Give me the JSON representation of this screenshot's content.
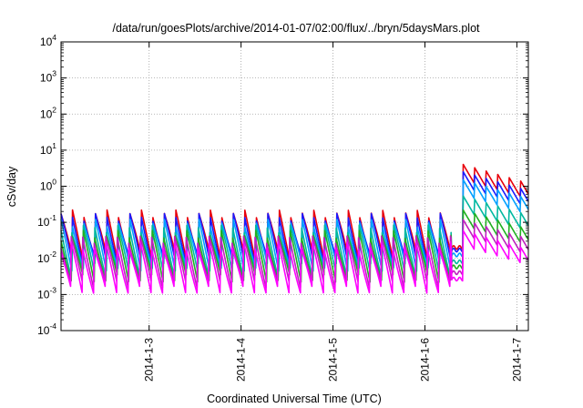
{
  "chart_data": {
    "type": "line",
    "title": "/data/run/goesPlots/archive/2014-01-07/02:00/flux/../bryn/5daysMars.plot",
    "xlabel": "Coordinated Universal Time (UTC)",
    "ylabel": "cSv/day",
    "y_scale": "log",
    "ylim": [
      0.0001,
      10000
    ],
    "y_tick_values": [
      0.0001,
      0.001,
      0.01,
      0.1,
      1,
      10,
      100,
      1000,
      10000
    ],
    "y_ticks": [
      {
        "base": "10",
        "exp": "-4"
      },
      {
        "base": "10",
        "exp": "-3"
      },
      {
        "base": "10",
        "exp": "-2"
      },
      {
        "base": "10",
        "exp": "-1"
      },
      {
        "base": "10",
        "exp": "0"
      },
      {
        "base": "10",
        "exp": "1"
      },
      {
        "base": "10",
        "exp": "2"
      },
      {
        "base": "10",
        "exp": "3"
      },
      {
        "base": "10",
        "exp": "4"
      }
    ],
    "xlim": [
      "2014-01-02T01:00",
      "2014-01-07T03:00"
    ],
    "x_ticks": [
      {
        "label": "2014-1-3",
        "date": "2014-01-03T00:00"
      },
      {
        "label": "2014-1-4",
        "date": "2014-01-04T00:00"
      },
      {
        "label": "2014-1-5",
        "date": "2014-01-05T00:00"
      },
      {
        "label": "2014-1-6",
        "date": "2014-01-06T00:00"
      },
      {
        "label": "2014-1-7",
        "date": "2014-01-07T00:00"
      }
    ],
    "grid": true,
    "legend": "none",
    "series": [
      {
        "color": "#e8000b",
        "base_level": 0.045,
        "event_level": 2.4
      },
      {
        "color": "#1a1aff",
        "base_level": 0.038,
        "event_level": 1.5
      },
      {
        "color": "#00a0ff",
        "base_level": 0.028,
        "event_level": 0.9
      },
      {
        "color": "#00b8a0",
        "base_level": 0.018,
        "event_level": 0.32
      },
      {
        "color": "#20b020",
        "base_level": 0.013,
        "event_level": 0.13
      },
      {
        "color": "#c020c0",
        "base_level": 0.009,
        "event_level": 0.07
      },
      {
        "color": "#ff00ff",
        "base_level": 0.006,
        "event_level": 0.035
      }
    ],
    "features": {
      "cycle_hours": 3,
      "oscillation_decades": 1.3,
      "event_start": "2014-01-06T10:00",
      "event_decay_to": 0.3,
      "pre_event_dip": "2014-01-06T07:00"
    }
  }
}
